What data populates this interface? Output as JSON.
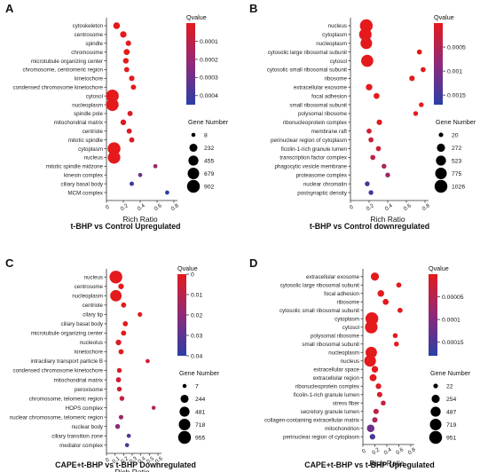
{
  "chart_data": [
    {
      "panel": "A",
      "type": "scatter",
      "title": "t-BHP vs Control Upregulated",
      "xlabel": "Rich Ratio",
      "x_ticks": [
        "0",
        "0.2",
        "0.4",
        "0.6",
        "0.8"
      ],
      "xlim": [
        0,
        0.8
      ],
      "categories": [
        "cytoskeleton",
        "centrosome",
        "spindle",
        "chromosome",
        "microtubule organizing center",
        "chromosome, centromeric region",
        "kinetochore",
        "condensed chromosome kinetochore",
        "cytosol",
        "nucleoplasm",
        "spindle pole",
        "mitochondrial matrix",
        "centriole",
        "mitotic spindle",
        "cytoplasm",
        "nucleus",
        "mitotic spindle midzone",
        "kinesin complex",
        "ciliary basal body",
        "MCM complex"
      ],
      "rich_ratio": [
        0.12,
        0.2,
        0.26,
        0.24,
        0.23,
        0.24,
        0.3,
        0.32,
        0.07,
        0.07,
        0.28,
        0.2,
        0.27,
        0.3,
        0.09,
        0.09,
        0.58,
        0.4,
        0.3,
        0.72
      ],
      "gene_number": [
        120,
        100,
        50,
        80,
        60,
        40,
        50,
        40,
        902,
        850,
        40,
        60,
        40,
        40,
        902,
        850,
        10,
        10,
        15,
        10
      ],
      "qvalue": [
        0.0,
        0.0,
        0.0,
        0.0,
        0.0,
        0.0,
        0.0,
        0.0,
        0.0,
        0.0,
        2e-05,
        2e-05,
        2e-05,
        2e-05,
        0.0,
        0.0,
        0.0002,
        0.0003,
        0.0004,
        0.00045
      ],
      "color_legend": {
        "title": "Qvalue",
        "ticks": [
          "0.0001",
          "0.0002",
          "0.0003",
          "0.0004"
        ],
        "range": [
          0,
          0.00045
        ]
      },
      "size_legend": {
        "title": "Gene Number",
        "values": [
          "8",
          "232",
          "455",
          "679",
          "902"
        ]
      }
    },
    {
      "panel": "B",
      "type": "scatter",
      "title": "t-BHP vs Control  downregulated",
      "xlabel": "Rich Ratio",
      "x_ticks": [
        "0",
        "0.2",
        "0.4",
        "0.6",
        "0.8"
      ],
      "xlim": [
        0,
        0.8
      ],
      "categories": [
        "nucleus",
        "cytoplasm",
        "nucleoplasm",
        "cytosolic large ribosomal subunit",
        "cytosol",
        "cytosolic small ribosomal subunit",
        "ribosome",
        "extracellular exosome",
        "focal adhesion",
        "small ribosomal subunit",
        "polysomal ribosome",
        "ribonucleoprotein complex",
        "membrane raft",
        "perinuclear region of cytoplasm",
        "ficolin-1-rich granule lumen",
        "transcription factor complex",
        "phagocytic vesicle membrane",
        "proteasome complex",
        "nuclear chromatin",
        "postsynaptic density"
      ],
      "rich_ratio": [
        0.17,
        0.16,
        0.17,
        0.74,
        0.18,
        0.78,
        0.66,
        0.2,
        0.28,
        0.76,
        0.7,
        0.31,
        0.2,
        0.22,
        0.3,
        0.24,
        0.36,
        0.4,
        0.18,
        0.22
      ],
      "gene_number": [
        1026,
        950,
        800,
        40,
        900,
        40,
        60,
        120,
        80,
        30,
        30,
        60,
        40,
        40,
        40,
        40,
        30,
        30,
        30,
        30
      ],
      "qvalue": [
        0.0,
        0.0,
        0.0,
        0.0,
        0.0,
        0.0,
        0.0,
        0.0,
        0.0,
        0.0,
        0.0,
        5e-05,
        0.0002,
        0.0003,
        0.0003,
        0.0004,
        0.0005,
        0.0007,
        0.0014,
        0.0015
      ],
      "color_legend": {
        "title": "Qvalue",
        "ticks": [
          "0.0005",
          "0.001",
          "0.0015"
        ],
        "range": [
          0,
          0.0017
        ]
      },
      "size_legend": {
        "title": "Gene Number",
        "values": [
          "20",
          "272",
          "523",
          "775",
          "1026"
        ]
      }
    },
    {
      "panel": "C",
      "type": "scatter",
      "title": "CAPE+t-BHP  vs t-BHP Downregulated",
      "xlabel": "Rich Ratio",
      "x_ticks": [
        "0",
        "0.1",
        "0.2",
        "0.3",
        "0.4",
        "0.5",
        "0.6"
      ],
      "xlim": [
        0,
        0.6
      ],
      "categories": [
        "nucleus",
        "centrosome",
        "nucleoplasm",
        "centriole",
        "cilary tip",
        "ciliary basal body",
        "microtubule organizing center",
        "nucleolus",
        "kinetochore",
        "intraciliary transport particle B",
        "condensed chromosome kinetochore",
        "mitochondrial matrix",
        "peroxisome",
        "chromosome, telomeric region",
        "HOPS complex",
        "nuclear chromosome, telomeric region",
        "nuclear body",
        "ciliary transition zone",
        "mediator complex"
      ],
      "rich_ratio": [
        0.11,
        0.17,
        0.11,
        0.2,
        0.39,
        0.22,
        0.2,
        0.14,
        0.17,
        0.48,
        0.15,
        0.14,
        0.15,
        0.18,
        0.55,
        0.17,
        0.13,
        0.26,
        0.24
      ],
      "gene_number": [
        955,
        60,
        700,
        40,
        20,
        40,
        40,
        60,
        40,
        10,
        30,
        40,
        30,
        30,
        7,
        20,
        30,
        10,
        10
      ],
      "qvalue": [
        0.0,
        0.0,
        0.0,
        0.0,
        0.0,
        0.0,
        0.0,
        0.002,
        0.0,
        0.004,
        0.003,
        0.005,
        0.006,
        0.008,
        0.012,
        0.016,
        0.02,
        0.032,
        0.035
      ],
      "color_legend": {
        "title": "Qvalue",
        "ticks": [
          "0",
          "0.01",
          "0.02",
          "0.03",
          "0.04"
        ],
        "range": [
          0,
          0.04
        ]
      },
      "size_legend": {
        "title": "Gene Number",
        "values": [
          "7",
          "244",
          "481",
          "718",
          "955"
        ]
      }
    },
    {
      "panel": "D",
      "type": "scatter",
      "title": "CAPE+t-BHP  vs t-BHP Upregulated",
      "xlabel": "Rich Ratio",
      "x_ticks": [
        "0",
        "0.2",
        "0.4",
        "0.6",
        "0.8"
      ],
      "xlim": [
        0,
        0.8
      ],
      "categories": [
        "extracellular exosome",
        "cytosolic large ribosomal subunit",
        "focal adhesion",
        "ribosome",
        "cytosolic small ribosomal subunit",
        "cytoplasm",
        "cytosol",
        "polysomal ribosome",
        "small ribosomal subunit",
        "nucleoplasm",
        "nucleus",
        "extracellular space",
        "extracellular region",
        "ribonucleoprotein complex",
        "ficolin-1-rich granule lumen",
        "stress fiber",
        "secretory granule lumen",
        "collagen-containing extracellular matrix",
        "mitochondrion",
        "perinuclear region of cytoplasm"
      ],
      "rich_ratio": [
        0.2,
        0.6,
        0.3,
        0.38,
        0.62,
        0.15,
        0.14,
        0.54,
        0.56,
        0.14,
        0.12,
        0.2,
        0.17,
        0.26,
        0.28,
        0.34,
        0.22,
        0.2,
        0.13,
        0.16
      ],
      "gene_number": [
        250,
        40,
        120,
        80,
        40,
        951,
        900,
        30,
        30,
        700,
        750,
        120,
        150,
        60,
        50,
        30,
        50,
        50,
        200,
        60
      ],
      "qvalue": [
        0.0,
        0.0,
        0.0,
        0.0,
        0.0,
        0.0,
        0.0,
        0.0,
        0.0,
        0.0,
        0.0,
        0.0,
        0.0,
        1e-05,
        2e-05,
        3e-05,
        4e-05,
        6e-05,
        0.00012,
        0.00015
      ],
      "color_legend": {
        "title": "Qvalue",
        "ticks": [
          "0.00005",
          "0.0001",
          "0.00015"
        ],
        "range": [
          0,
          0.00018
        ]
      },
      "size_legend": {
        "title": "Gene Number",
        "values": [
          "22",
          "254",
          "487",
          "719",
          "951"
        ]
      }
    }
  ],
  "colors": {
    "low_q": "#e41a1c",
    "mid_q": "#8e2a7a",
    "high_q": "#2b3ea6"
  }
}
